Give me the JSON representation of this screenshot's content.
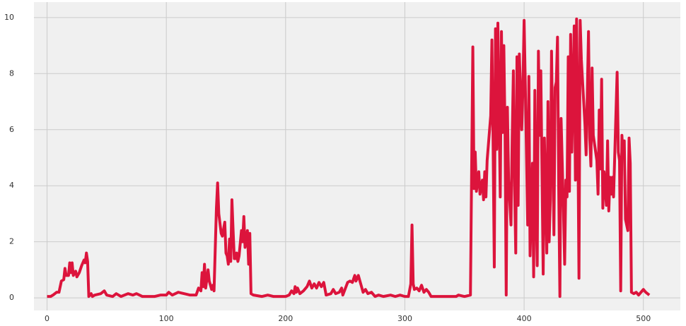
{
  "chart_data": {
    "type": "line",
    "color": "#dc143c",
    "grid": true,
    "xlim": [
      -11,
      531
    ],
    "ylim": [
      -0.45,
      10.55
    ],
    "xticks": [
      0,
      100,
      200,
      300,
      400,
      500
    ],
    "yticks": [
      0,
      2,
      4,
      6,
      8,
      10
    ],
    "x": [
      0,
      3,
      5,
      8,
      10,
      12,
      14,
      15,
      16,
      18,
      19,
      20,
      21,
      22,
      24,
      25,
      27,
      29,
      31,
      32,
      33,
      34,
      35,
      37,
      38,
      40,
      45,
      48,
      50,
      55,
      58,
      62,
      68,
      72,
      75,
      80,
      90,
      95,
      100,
      102,
      105,
      110,
      115,
      120,
      125,
      127,
      129,
      130,
      131,
      132,
      133,
      135,
      136,
      138,
      139,
      140,
      142,
      143,
      144,
      146,
      147,
      149,
      150,
      151,
      152,
      153,
      154,
      155,
      156,
      157,
      158,
      159,
      160,
      161,
      163,
      164,
      165,
      166,
      167,
      168,
      169,
      170,
      171,
      173,
      180,
      185,
      190,
      195,
      200,
      203,
      205,
      207,
      208,
      209,
      210,
      212,
      215,
      218,
      220,
      222,
      224,
      226,
      228,
      230,
      232,
      234,
      238,
      240,
      242,
      245,
      247,
      248,
      252,
      254,
      256,
      258,
      259,
      261,
      263,
      265,
      267,
      269,
      272,
      275,
      278,
      282,
      288,
      292,
      296,
      300,
      303,
      305,
      306,
      307,
      308,
      310,
      312,
      314,
      316,
      318,
      320,
      322,
      330,
      335,
      340,
      343,
      345,
      350,
      355,
      357,
      358,
      359,
      360,
      362,
      363,
      365,
      366,
      367,
      368,
      369,
      372,
      373,
      374,
      375,
      376,
      377,
      378,
      380,
      381,
      382,
      383,
      384,
      385,
      386,
      387,
      389,
      390,
      391,
      392,
      393,
      394,
      395,
      396,
      398,
      399,
      400,
      401,
      403,
      404,
      405,
      407,
      408,
      409,
      410,
      411,
      412,
      413,
      414,
      416,
      417,
      418,
      419,
      420,
      421,
      422,
      423,
      425,
      426,
      427,
      428,
      429,
      430,
      431,
      433,
      434,
      435,
      436,
      437,
      438,
      439,
      440,
      442,
      443,
      444,
      445,
      446,
      447,
      448,
      451,
      452,
      454,
      455,
      456,
      457,
      458,
      461,
      462,
      463,
      464,
      465,
      466,
      467,
      469,
      470,
      471,
      472,
      473,
      474,
      475,
      478,
      479,
      480,
      481,
      482,
      483,
      484,
      485,
      487,
      488,
      489,
      490,
      492,
      494,
      496,
      498,
      500,
      502,
      505
    ],
    "values": [
      0.05,
      0.05,
      0.1,
      0.2,
      0.2,
      0.6,
      0.65,
      1.05,
      0.8,
      0.8,
      1.25,
      0.9,
      1.25,
      0.8,
      0.95,
      0.75,
      0.9,
      1.15,
      1.35,
      1.25,
      1.6,
      1.3,
      0.05,
      0.15,
      0.05,
      0.1,
      0.15,
      0.25,
      0.1,
      0.05,
      0.15,
      0.05,
      0.15,
      0.1,
      0.15,
      0.05,
      0.05,
      0.1,
      0.1,
      0.2,
      0.1,
      0.2,
      0.15,
      0.1,
      0.1,
      0.35,
      0.25,
      0.9,
      0.4,
      1.2,
      0.35,
      1.0,
      0.6,
      0.3,
      0.45,
      0.25,
      3.2,
      4.1,
      3.0,
      2.3,
      2.2,
      2.7,
      1.6,
      1.5,
      1.2,
      2.1,
      1.3,
      3.5,
      2.4,
      1.4,
      1.4,
      1.6,
      1.3,
      1.5,
      2.4,
      2.0,
      2.9,
      1.8,
      2.1,
      2.4,
      1.2,
      2.3,
      0.15,
      0.1,
      0.05,
      0.1,
      0.05,
      0.05,
      0.05,
      0.1,
      0.25,
      0.15,
      0.4,
      0.2,
      0.35,
      0.15,
      0.25,
      0.4,
      0.6,
      0.35,
      0.5,
      0.35,
      0.55,
      0.4,
      0.55,
      0.1,
      0.15,
      0.3,
      0.15,
      0.2,
      0.35,
      0.1,
      0.55,
      0.6,
      0.55,
      0.8,
      0.6,
      0.8,
      0.5,
      0.2,
      0.3,
      0.15,
      0.2,
      0.05,
      0.1,
      0.05,
      0.1,
      0.05,
      0.1,
      0.05,
      0.05,
      0.5,
      2.6,
      0.5,
      0.3,
      0.35,
      0.25,
      0.45,
      0.2,
      0.3,
      0.2,
      0.05,
      0.05,
      0.05,
      0.05,
      0.05,
      0.1,
      0.05,
      0.1,
      8.95,
      3.9,
      5.2,
      3.8,
      4.5,
      3.7,
      4.2,
      3.5,
      4.5,
      3.6,
      4.9,
      6.5,
      9.2,
      5.5,
      1.1,
      9.6,
      5.3,
      9.8,
      3.6,
      9.5,
      5.9,
      9.0,
      5.9,
      0.1,
      6.8,
      4.2,
      2.6,
      5.7,
      8.1,
      4.0,
      1.6,
      8.6,
      3.3,
      8.7,
      6.0,
      7.5,
      9.9,
      7.6,
      2.6,
      7.9,
      1.5,
      4.8,
      0.75,
      7.4,
      3.3,
      1.15,
      8.8,
      5.8,
      8.1,
      0.85,
      5.7,
      3.7,
      1.6,
      7.0,
      2.0,
      3.5,
      8.8,
      2.25,
      7.5,
      7.7,
      9.3,
      4.0,
      0.05,
      6.4,
      3.1,
      1.2,
      4.2,
      3.6,
      8.6,
      3.8,
      9.4,
      5.2,
      9.7,
      4.2,
      9.95,
      6.2,
      0.7,
      9.9,
      8.5,
      6.2,
      5.1,
      9.5,
      5.7,
      4.7,
      8.2,
      5.8,
      4.9,
      3.7,
      6.7,
      4.6,
      7.8,
      3.2,
      4.5,
      3.3,
      5.6,
      3.1,
      4.3,
      3.7,
      4.3,
      3.6,
      8.05,
      5.2,
      4.9,
      0.25,
      5.8,
      5.0,
      5.6,
      2.8,
      2.4,
      5.7,
      4.8,
      0.2,
      0.15,
      0.2,
      0.1,
      0.2,
      0.3,
      0.2,
      0.1
    ]
  }
}
